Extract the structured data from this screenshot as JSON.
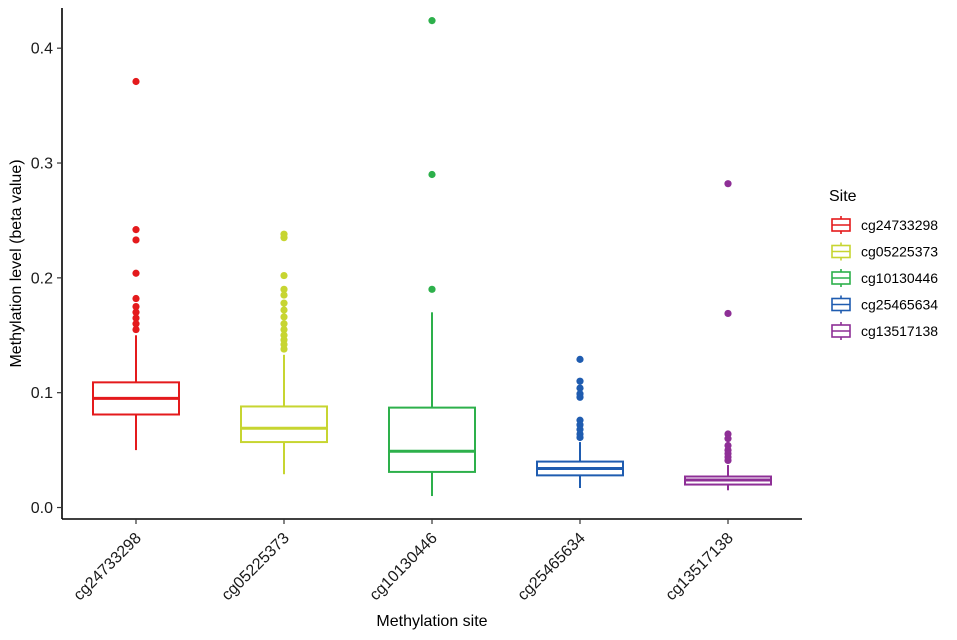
{
  "chart_data": {
    "type": "box",
    "xlabel": "Methylation site",
    "ylabel": "Methylation level (beta value)",
    "ylim": [
      -0.01,
      0.435
    ],
    "yticks": [
      0.0,
      0.1,
      0.2,
      0.3,
      0.4
    ],
    "ytick_labels": [
      "0.0",
      "0.1",
      "0.2",
      "0.3",
      "0.4"
    ],
    "categories": [
      "cg24733298",
      "cg05225373",
      "cg10130446",
      "cg25465634",
      "cg13517138"
    ],
    "legend": {
      "title": "Site",
      "placement": "right"
    },
    "grid": false,
    "series": [
      {
        "name": "cg24733298",
        "color": "#E41A1C",
        "whisker_low": 0.05,
        "q1": 0.081,
        "median": 0.095,
        "q3": 0.109,
        "whisker_high": 0.15,
        "outliers": [
          0.371,
          0.242,
          0.233,
          0.204,
          0.182,
          0.175,
          0.17,
          0.165,
          0.16,
          0.155
        ]
      },
      {
        "name": "cg05225373",
        "color": "#C7D531",
        "whisker_low": 0.029,
        "q1": 0.057,
        "median": 0.069,
        "q3": 0.088,
        "whisker_high": 0.133,
        "outliers": [
          0.238,
          0.235,
          0.202,
          0.19,
          0.185,
          0.178,
          0.172,
          0.166,
          0.16,
          0.155,
          0.15,
          0.146,
          0.142,
          0.138
        ]
      },
      {
        "name": "cg10130446",
        "color": "#2DB04B",
        "whisker_low": 0.01,
        "q1": 0.031,
        "median": 0.049,
        "q3": 0.087,
        "whisker_high": 0.17,
        "outliers": [
          0.424,
          0.29,
          0.19
        ]
      },
      {
        "name": "cg25465634",
        "color": "#1F5CB0",
        "whisker_low": 0.017,
        "q1": 0.028,
        "median": 0.034,
        "q3": 0.04,
        "whisker_high": 0.057,
        "outliers": [
          0.129,
          0.11,
          0.104,
          0.099,
          0.096,
          0.076,
          0.072,
          0.068,
          0.064,
          0.061
        ]
      },
      {
        "name": "cg13517138",
        "color": "#8E2F96",
        "whisker_low": 0.015,
        "q1": 0.02,
        "median": 0.024,
        "q3": 0.027,
        "whisker_high": 0.037,
        "outliers": [
          0.282,
          0.169,
          0.064,
          0.06,
          0.054,
          0.05,
          0.047,
          0.044,
          0.041
        ]
      }
    ]
  }
}
